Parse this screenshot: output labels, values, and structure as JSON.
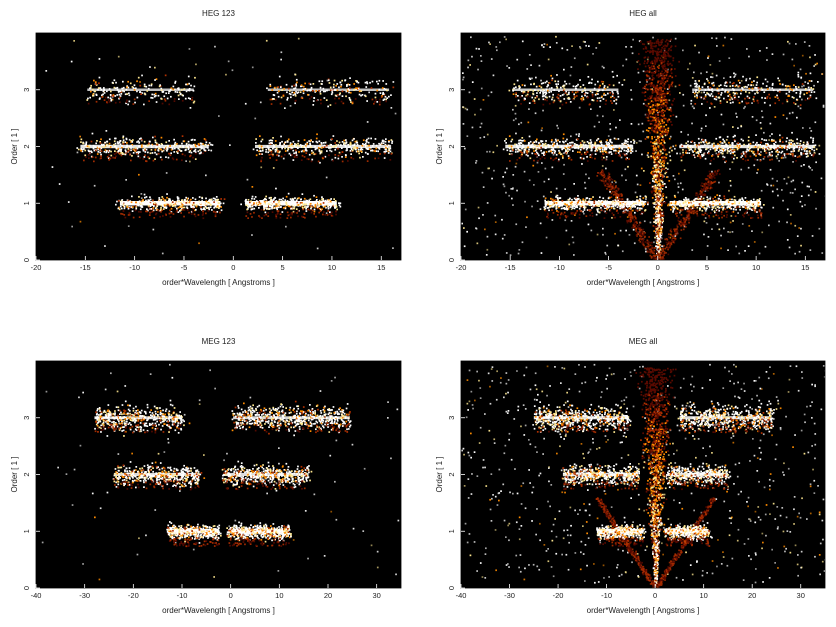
{
  "chart_data": [
    {
      "type": "heatmap",
      "title": "HEG 123",
      "xlabel": "order*Wavelength [ Angstroms ]",
      "ylabel": "Order [ 1 ]",
      "xlim": [
        -20,
        17
      ],
      "ylim": [
        0,
        4
      ],
      "xticks": [
        -20,
        -15,
        -10,
        -5,
        0,
        5,
        10,
        15
      ],
      "yticks": [
        0,
        1,
        2,
        3
      ],
      "colormap": [
        "#000000",
        "#5a0a00",
        "#b03000",
        "#ff8c00",
        "#ffe890",
        "#ffffff"
      ],
      "bands": [
        {
          "order": 1,
          "x_min": -11.5,
          "x_max": -1.3,
          "intensity": 1.0
        },
        {
          "order": 1,
          "x_min": 1.2,
          "x_max": 10.5,
          "intensity": 1.0
        },
        {
          "order": 2,
          "x_min": -15.5,
          "x_max": -2.5,
          "intensity": 0.75
        },
        {
          "order": 2,
          "x_min": 2.2,
          "x_max": 16.0,
          "intensity": 0.7
        },
        {
          "order": 3,
          "x_min": -14.8,
          "x_max": -4.0,
          "intensity": 0.45
        },
        {
          "order": 3,
          "x_min": 3.5,
          "x_max": 15.8,
          "intensity": 0.45
        }
      ],
      "zero_order_cone": false
    },
    {
      "type": "heatmap",
      "title": "HEG all",
      "xlabel": "order*Wavelength [ Angstroms ]",
      "ylabel": "Order [ 1 ]",
      "xlim": [
        -20,
        17
      ],
      "ylim": [
        0,
        4
      ],
      "xticks": [
        -20,
        -15,
        -10,
        -5,
        0,
        5,
        10,
        15
      ],
      "yticks": [
        0,
        1,
        2,
        3
      ],
      "colormap": [
        "#000000",
        "#5a0a00",
        "#b03000",
        "#ff8c00",
        "#ffe890",
        "#ffffff"
      ],
      "bands": [
        {
          "order": 1,
          "x_min": -11.5,
          "x_max": -1.3,
          "intensity": 1.0
        },
        {
          "order": 1,
          "x_min": 1.2,
          "x_max": 10.5,
          "intensity": 1.0
        },
        {
          "order": 2,
          "x_min": -15.5,
          "x_max": -2.5,
          "intensity": 0.8
        },
        {
          "order": 2,
          "x_min": 2.2,
          "x_max": 16.0,
          "intensity": 0.75
        },
        {
          "order": 3,
          "x_min": -14.8,
          "x_max": -4.0,
          "intensity": 0.5
        },
        {
          "order": 3,
          "x_min": 3.5,
          "x_max": 15.8,
          "intensity": 0.5
        }
      ],
      "zero_order_cone": true
    },
    {
      "type": "heatmap",
      "title": "MEG 123",
      "xlabel": "order*Wavelength [ Angstroms ]",
      "ylabel": "Order [ 1 ]",
      "xlim": [
        -40,
        35
      ],
      "ylim": [
        0,
        4
      ],
      "xticks": [
        -40,
        -30,
        -20,
        -10,
        0,
        10,
        20,
        30
      ],
      "yticks": [
        0,
        1,
        2,
        3
      ],
      "colormap": [
        "#000000",
        "#5a0a00",
        "#b03000",
        "#ff8c00",
        "#ffe890",
        "#ffffff"
      ],
      "bands": [
        {
          "order": 1,
          "x_min": -13.0,
          "x_max": -2.5,
          "intensity": 1.0
        },
        {
          "order": 1,
          "x_min": -0.5,
          "x_max": 12.0,
          "intensity": 1.0
        },
        {
          "order": 2,
          "x_min": -24.0,
          "x_max": -6.5,
          "intensity": 0.7
        },
        {
          "order": 2,
          "x_min": -1.5,
          "x_max": 16.0,
          "intensity": 0.7
        },
        {
          "order": 3,
          "x_min": -28.0,
          "x_max": -10.0,
          "intensity": 0.65
        },
        {
          "order": 3,
          "x_min": 0.5,
          "x_max": 24.5,
          "intensity": 0.65
        }
      ],
      "zero_order_cone": false
    },
    {
      "type": "heatmap",
      "title": "MEG all",
      "xlabel": "order*Wavelength [ Angstroms ]",
      "ylabel": "Order [ 1 ]",
      "xlim": [
        -40,
        35
      ],
      "ylim": [
        0,
        4
      ],
      "xticks": [
        -40,
        -30,
        -20,
        -10,
        0,
        10,
        20,
        30
      ],
      "yticks": [
        0,
        1,
        2,
        3
      ],
      "colormap": [
        "#000000",
        "#5a0a00",
        "#b03000",
        "#ff8c00",
        "#ffe890",
        "#ffffff"
      ],
      "bands": [
        {
          "order": 1,
          "x_min": -12.0,
          "x_max": -2.5,
          "intensity": 1.0
        },
        {
          "order": 1,
          "x_min": 2.0,
          "x_max": 11.0,
          "intensity": 1.0
        },
        {
          "order": 2,
          "x_min": -19.0,
          "x_max": -3.5,
          "intensity": 0.75
        },
        {
          "order": 2,
          "x_min": 2.5,
          "x_max": 15.0,
          "intensity": 0.75
        },
        {
          "order": 3,
          "x_min": -25.0,
          "x_max": -5.5,
          "intensity": 0.7
        },
        {
          "order": 3,
          "x_min": 5.0,
          "x_max": 24.0,
          "intensity": 0.7
        }
      ],
      "zero_order_cone": true
    }
  ]
}
